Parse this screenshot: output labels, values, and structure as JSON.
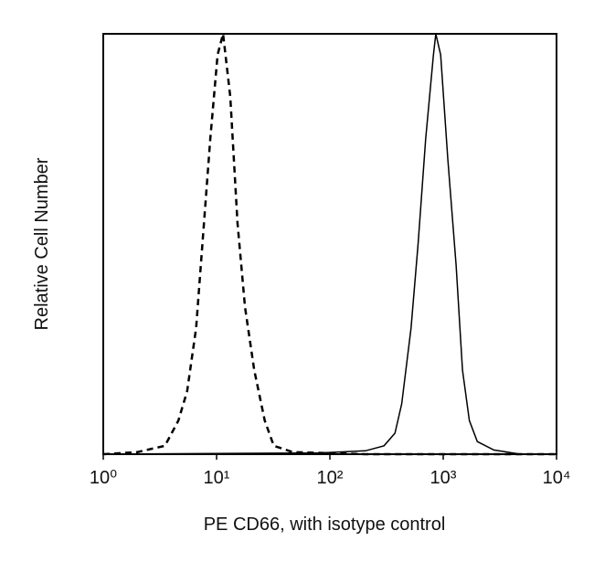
{
  "chart_data": {
    "type": "line",
    "xlabel": "PE CD66, with isotype control",
    "ylabel": "Relative Cell Number",
    "xscale": "log",
    "xlim": [
      1,
      10000
    ],
    "ylim": [
      0,
      100
    ],
    "xticks": [
      {
        "value": 1,
        "label": "10⁰"
      },
      {
        "value": 10,
        "label": "10¹"
      },
      {
        "value": 100,
        "label": "10²"
      },
      {
        "value": 1000,
        "label": "10³"
      },
      {
        "value": 10000,
        "label": "10⁴"
      }
    ],
    "series": [
      {
        "color": "#000000",
        "dash": true,
        "x": [
          1,
          2,
          3.5,
          4.6,
          5.5,
          6.6,
          7.5,
          8.8,
          10.2,
          11.4,
          13.2,
          15.3,
          17.8,
          21.5,
          26.6,
          32,
          47,
          206,
          10000
        ],
        "values": [
          0,
          0.5,
          2,
          8,
          15,
          30,
          50,
          75,
          95,
          100,
          85,
          55,
          35,
          20,
          8,
          2,
          0.5,
          0,
          0
        ]
      },
      {
        "color": "#000000",
        "dash": false,
        "x": [
          1,
          81,
          206,
          300,
          375,
          430,
          520,
          600,
          700,
          820,
          860,
          950,
          1100,
          1300,
          1480,
          1700,
          2000,
          2800,
          4800,
          10000
        ],
        "values": [
          0,
          0.3,
          0.8,
          2,
          5,
          12,
          30,
          50,
          75,
          95,
          100,
          95,
          70,
          45,
          20,
          8,
          3,
          1,
          0,
          0
        ]
      }
    ]
  }
}
